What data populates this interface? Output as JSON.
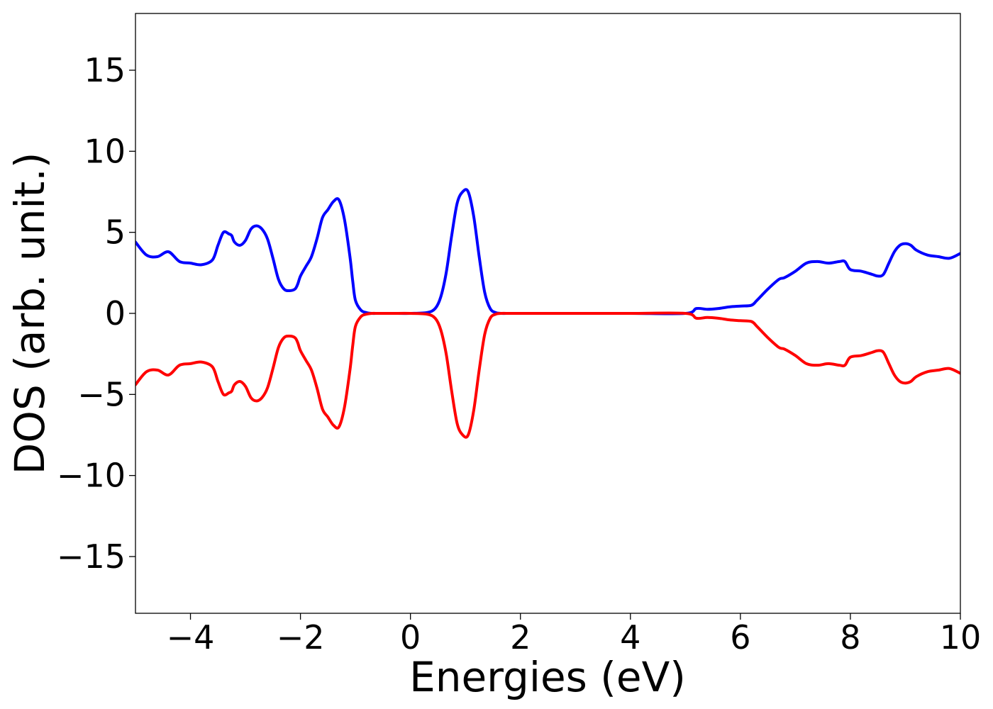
{
  "chart_data": {
    "type": "line",
    "title": "",
    "xlabel": "Energies (eV)",
    "ylabel": "DOS (arb. unit.)",
    "xlim": [
      -5,
      10
    ],
    "ylim": [
      -18.5,
      18.5
    ],
    "xticks": [
      -4,
      -2,
      0,
      2,
      4,
      6,
      8,
      10
    ],
    "yticks": [
      -15,
      -10,
      -5,
      0,
      5,
      10,
      15
    ],
    "xtick_labels": [
      "−4",
      "−2",
      "0",
      "2",
      "4",
      "6",
      "8",
      "10"
    ],
    "ytick_labels": [
      "−15",
      "−10",
      "−5",
      "0",
      "5",
      "10",
      "15"
    ],
    "grid": false,
    "legend": "none",
    "series": [
      {
        "color": "#0000ff",
        "x": [
          -5.0,
          -4.8,
          -4.6,
          -4.4,
          -4.2,
          -4.0,
          -3.8,
          -3.6,
          -3.5,
          -3.4,
          -3.3,
          -3.25,
          -3.2,
          -3.1,
          -3.0,
          -2.9,
          -2.8,
          -2.7,
          -2.6,
          -2.5,
          -2.4,
          -2.3,
          -2.2,
          -2.1,
          -2.05,
          -2.0,
          -1.9,
          -1.8,
          -1.7,
          -1.6,
          -1.5,
          -1.4,
          -1.3,
          -1.2,
          -1.1,
          -1.05,
          -1.0,
          -0.9,
          -0.8,
          -0.7,
          -0.6,
          -0.5,
          -0.4,
          -0.3,
          0.0,
          0.3,
          0.45,
          0.55,
          0.65,
          0.75,
          0.85,
          0.95,
          1.05,
          1.15,
          1.25,
          1.35,
          1.45,
          1.55,
          1.65,
          1.8,
          2.0,
          3.0,
          4.0,
          5.0,
          5.2,
          5.4,
          5.6,
          5.8,
          6.0,
          6.2,
          6.3,
          6.5,
          6.7,
          6.8,
          7.0,
          7.2,
          7.4,
          7.6,
          7.8,
          7.9,
          8.0,
          8.2,
          8.4,
          8.5,
          8.6,
          8.7,
          8.8,
          8.9,
          9.0,
          9.1,
          9.2,
          9.4,
          9.6,
          9.8,
          10.0
        ],
        "y": [
          4.4,
          3.6,
          3.5,
          3.8,
          3.2,
          3.1,
          3.0,
          3.3,
          4.2,
          5.0,
          4.9,
          4.8,
          4.4,
          4.2,
          4.5,
          5.2,
          5.4,
          5.2,
          4.6,
          3.4,
          2.1,
          1.5,
          1.4,
          1.5,
          1.8,
          2.3,
          2.9,
          3.5,
          4.6,
          5.9,
          6.4,
          6.9,
          7.0,
          5.8,
          3.5,
          2.0,
          0.8,
          0.2,
          0.05,
          0.0,
          0.0,
          0.0,
          0.0,
          0.0,
          0.0,
          0.05,
          0.3,
          1.0,
          2.5,
          4.8,
          6.8,
          7.5,
          7.5,
          6.0,
          3.5,
          1.3,
          0.3,
          0.05,
          0.0,
          0.0,
          0.0,
          0.0,
          0.0,
          0.0,
          0.3,
          0.25,
          0.3,
          0.4,
          0.45,
          0.5,
          0.8,
          1.5,
          2.1,
          2.2,
          2.6,
          3.1,
          3.2,
          3.1,
          3.2,
          3.2,
          2.7,
          2.6,
          2.4,
          2.3,
          2.4,
          3.1,
          3.8,
          4.2,
          4.3,
          4.2,
          3.9,
          3.6,
          3.5,
          3.4,
          3.7
        ]
      },
      {
        "color": "#ff0000",
        "x": [
          -5.0,
          -4.8,
          -4.6,
          -4.4,
          -4.2,
          -4.0,
          -3.8,
          -3.6,
          -3.5,
          -3.4,
          -3.3,
          -3.25,
          -3.2,
          -3.1,
          -3.0,
          -2.9,
          -2.8,
          -2.7,
          -2.6,
          -2.5,
          -2.4,
          -2.3,
          -2.2,
          -2.1,
          -2.05,
          -2.0,
          -1.9,
          -1.8,
          -1.7,
          -1.6,
          -1.5,
          -1.4,
          -1.3,
          -1.2,
          -1.1,
          -1.05,
          -1.0,
          -0.9,
          -0.8,
          -0.7,
          -0.6,
          -0.5,
          -0.4,
          -0.3,
          0.0,
          0.3,
          0.45,
          0.55,
          0.65,
          0.75,
          0.85,
          0.95,
          1.05,
          1.15,
          1.25,
          1.35,
          1.45,
          1.55,
          1.65,
          1.8,
          2.0,
          3.0,
          4.0,
          5.0,
          5.2,
          5.4,
          5.6,
          5.8,
          6.0,
          6.2,
          6.3,
          6.5,
          6.7,
          6.8,
          7.0,
          7.2,
          7.4,
          7.6,
          7.8,
          7.9,
          8.0,
          8.2,
          8.4,
          8.5,
          8.6,
          8.7,
          8.8,
          8.9,
          9.0,
          9.1,
          9.2,
          9.4,
          9.6,
          9.8,
          10.0
        ],
        "y": [
          -4.4,
          -3.6,
          -3.5,
          -3.8,
          -3.2,
          -3.1,
          -3.0,
          -3.3,
          -4.2,
          -5.0,
          -4.9,
          -4.8,
          -4.4,
          -4.2,
          -4.5,
          -5.2,
          -5.4,
          -5.2,
          -4.6,
          -3.4,
          -2.1,
          -1.5,
          -1.4,
          -1.5,
          -1.8,
          -2.3,
          -2.9,
          -3.5,
          -4.6,
          -5.9,
          -6.4,
          -6.9,
          -7.0,
          -5.8,
          -3.5,
          -2.0,
          -0.8,
          -0.2,
          -0.05,
          0.0,
          0.0,
          0.0,
          0.0,
          0.0,
          0.0,
          -0.05,
          -0.3,
          -1.0,
          -2.5,
          -4.8,
          -6.8,
          -7.5,
          -7.5,
          -6.0,
          -3.5,
          -1.3,
          -0.3,
          -0.05,
          0.0,
          0.0,
          0.0,
          0.0,
          0.0,
          0.0,
          -0.3,
          -0.25,
          -0.3,
          -0.4,
          -0.45,
          -0.5,
          -0.8,
          -1.5,
          -2.1,
          -2.2,
          -2.6,
          -3.1,
          -3.2,
          -3.1,
          -3.2,
          -3.2,
          -2.7,
          -2.6,
          -2.4,
          -2.3,
          -2.4,
          -3.1,
          -3.8,
          -4.2,
          -4.3,
          -4.2,
          -3.9,
          -3.6,
          -3.5,
          -3.4,
          -3.7
        ]
      }
    ]
  }
}
